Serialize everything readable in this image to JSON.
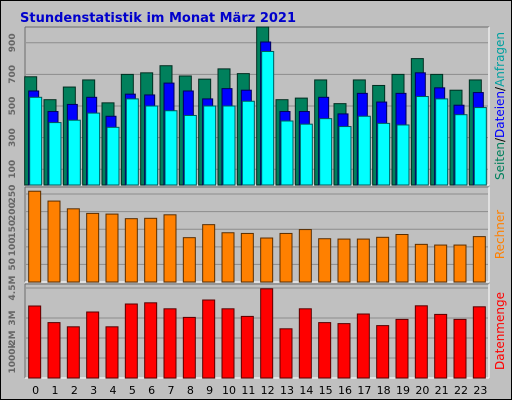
{
  "chart_data": [
    {
      "type": "bar",
      "title": "Stundenstatistik im Monat März 2021",
      "x": [
        "0",
        "1",
        "2",
        "3",
        "4",
        "5",
        "6",
        "7",
        "8",
        "9",
        "10",
        "11",
        "12",
        "13",
        "14",
        "15",
        "16",
        "17",
        "18",
        "19",
        "20",
        "21",
        "22",
        "23"
      ],
      "ylim": [
        0,
        1000
      ],
      "yticks": [
        "100",
        "300",
        "500",
        "700",
        "900"
      ],
      "series": [
        {
          "name": "Seiten",
          "color": "#00805c",
          "values": [
            685,
            540,
            620,
            665,
            520,
            700,
            710,
            755,
            690,
            670,
            735,
            705,
            1000,
            540,
            550,
            665,
            515,
            665,
            630,
            700,
            800,
            700,
            600,
            665
          ]
        },
        {
          "name": "Dateien",
          "color": "#0000ff",
          "values": [
            595,
            465,
            510,
            555,
            435,
            575,
            570,
            645,
            595,
            545,
            610,
            600,
            905,
            465,
            465,
            555,
            450,
            580,
            525,
            580,
            710,
            615,
            505,
            585
          ]
        },
        {
          "name": "Anfragen",
          "color": "#00ffff",
          "values": [
            555,
            395,
            410,
            455,
            365,
            545,
            500,
            470,
            440,
            500,
            500,
            530,
            845,
            405,
            385,
            420,
            370,
            435,
            390,
            380,
            560,
            545,
            445,
            490
          ]
        }
      ]
    },
    {
      "type": "bar",
      "ylim": [
        0,
        270
      ],
      "yticks": [
        "50",
        "100",
        "150",
        "200",
        "250"
      ],
      "series": [
        {
          "name": "Rechner",
          "color": "#ff8000",
          "values": [
            258,
            230,
            208,
            195,
            193,
            180,
            181,
            191,
            126,
            163,
            140,
            138,
            125,
            138,
            149,
            123,
            122,
            122,
            127,
            135,
            107,
            105,
            105,
            129
          ]
        }
      ]
    },
    {
      "type": "bar",
      "ylim": [
        0,
        4700000
      ],
      "yticks": [
        "1000k",
        "2M",
        "3M",
        "4.5M"
      ],
      "series": [
        {
          "name": "Datenmenge",
          "color": "#ff0000",
          "values": [
            3600000,
            2770000,
            2560000,
            3300000,
            2560000,
            3700000,
            3760000,
            3460000,
            3030000,
            3900000,
            3460000,
            3080000,
            4460000,
            2460000,
            3460000,
            2770000,
            2720000,
            3200000,
            2620000,
            2930000,
            3610000,
            3180000,
            2930000,
            3560000
          ]
        }
      ]
    }
  ]
}
